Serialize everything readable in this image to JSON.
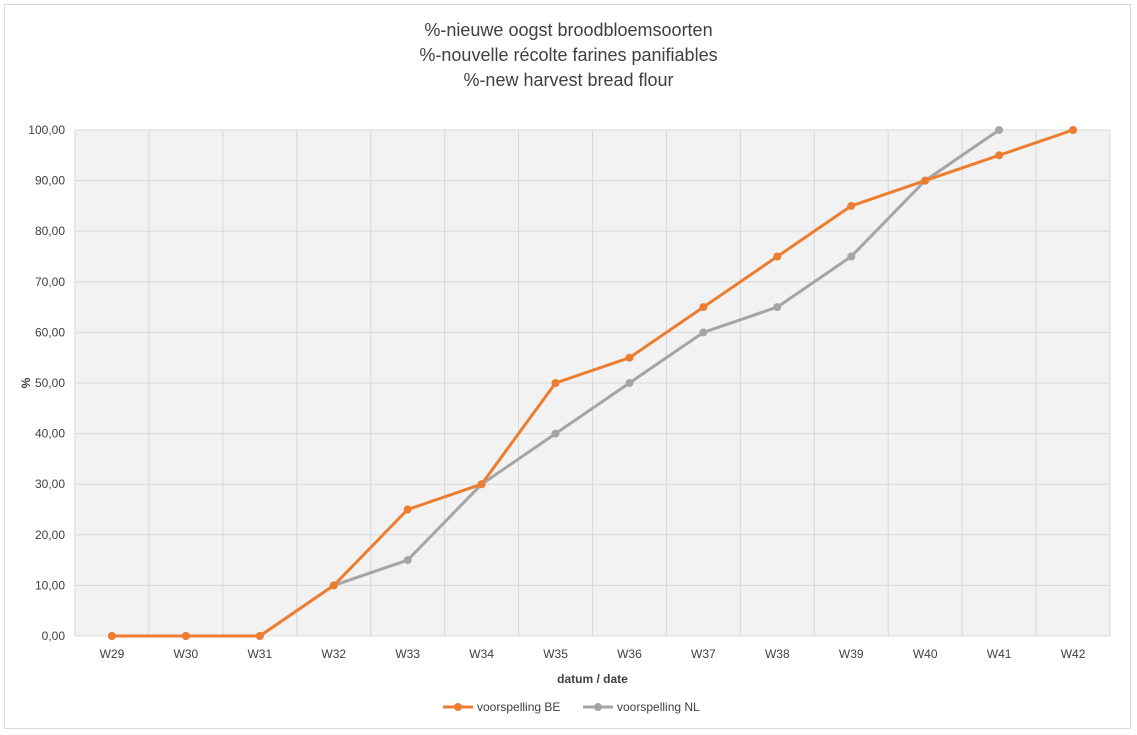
{
  "chart_data": {
    "type": "line",
    "title_lines": [
      "%-nieuwe oogst broodbloemsoorten",
      "%-nouvelle récolte farines panifiables",
      "%-new harvest bread flour"
    ],
    "xlabel": "datum / date",
    "ylabel": "%",
    "categories": [
      "W29",
      "W30",
      "W31",
      "W32",
      "W33",
      "W34",
      "W35",
      "W36",
      "W37",
      "W38",
      "W39",
      "W40",
      "W41",
      "W42"
    ],
    "ylim": [
      0,
      100
    ],
    "yticks": [
      "0,00",
      "10,00",
      "20,00",
      "30,00",
      "40,00",
      "50,00",
      "60,00",
      "70,00",
      "80,00",
      "90,00",
      "100,00"
    ],
    "grid": true,
    "legend_position": "bottom",
    "series": [
      {
        "name": "voorspelling BE",
        "color": "#ed7d31",
        "values": [
          0,
          0,
          0,
          10,
          25,
          30,
          50,
          55,
          65,
          75,
          85,
          90,
          95,
          100
        ]
      },
      {
        "name": "voorspelling NL",
        "color": "#a5a5a5",
        "values": [
          0,
          0,
          0,
          10,
          15,
          30,
          40,
          50,
          60,
          65,
          75,
          90,
          100,
          null
        ]
      }
    ]
  }
}
